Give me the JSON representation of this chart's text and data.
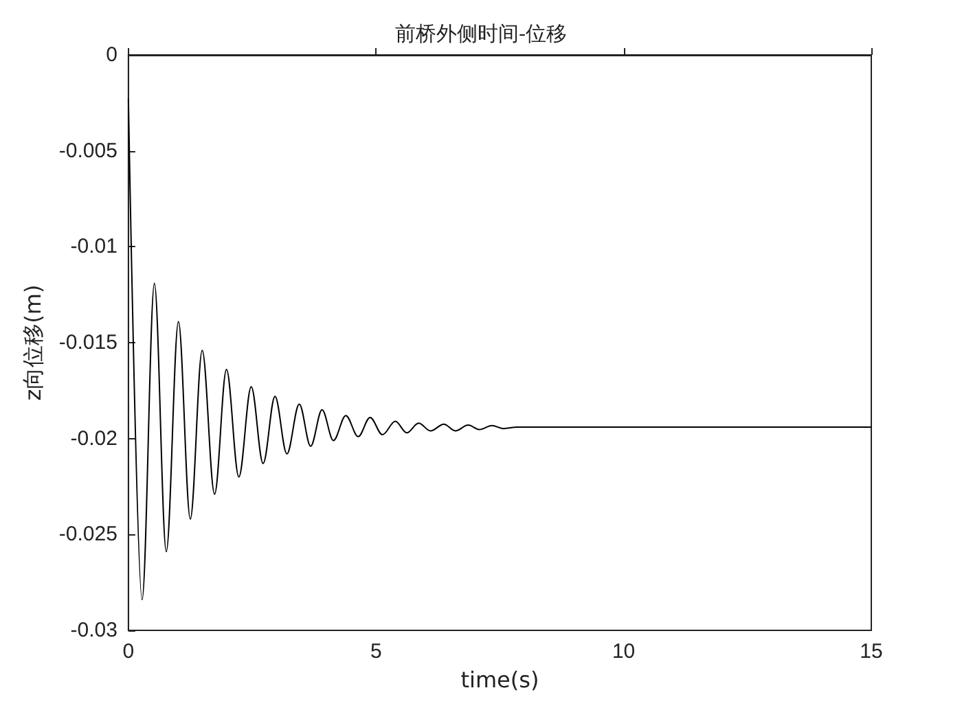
{
  "chart_data": {
    "type": "line",
    "title": "前桥外侧时间-位移",
    "xlabel": "time(s)",
    "ylabel": "z向位移(m)",
    "xlim": [
      0,
      15
    ],
    "xticks": [
      0,
      5,
      10,
      15
    ],
    "ylim": [
      -0.03,
      0
    ],
    "yticks": [
      -0.03,
      -0.025,
      -0.02,
      -0.015,
      -0.01,
      -0.005,
      0
    ],
    "grid": false,
    "marker": "none",
    "line_style": "solid",
    "series": [
      {
        "color": "#000000",
        "x": [
          0,
          0.276,
          0.525,
          0.765,
          1.01,
          1.25,
          1.49,
          1.74,
          1.98,
          2.23,
          2.48,
          2.72,
          2.96,
          3.2,
          3.45,
          3.68,
          3.91,
          4.14,
          4.39,
          4.64,
          4.88,
          5.13,
          5.39,
          5.62,
          5.86,
          6.1,
          6.37,
          6.6,
          6.86,
          7.09,
          7.34,
          7.57,
          7.85,
          8.5,
          15
        ],
        "values": [
          -0.0023,
          -0.0284,
          -0.0119,
          -0.0259,
          -0.0139,
          -0.0242,
          -0.0154,
          -0.0229,
          -0.0164,
          -0.022,
          -0.0173,
          -0.0213,
          -0.0178,
          -0.0208,
          -0.0182,
          -0.0204,
          -0.0185,
          -0.0201,
          -0.0188,
          -0.0199,
          -0.0189,
          -0.0198,
          -0.0191,
          -0.0197,
          -0.0192,
          -0.0196,
          -0.01925,
          -0.0196,
          -0.0193,
          -0.01953,
          -0.01932,
          -0.01948,
          -0.0194,
          -0.0194,
          -0.0194
        ]
      }
    ]
  }
}
